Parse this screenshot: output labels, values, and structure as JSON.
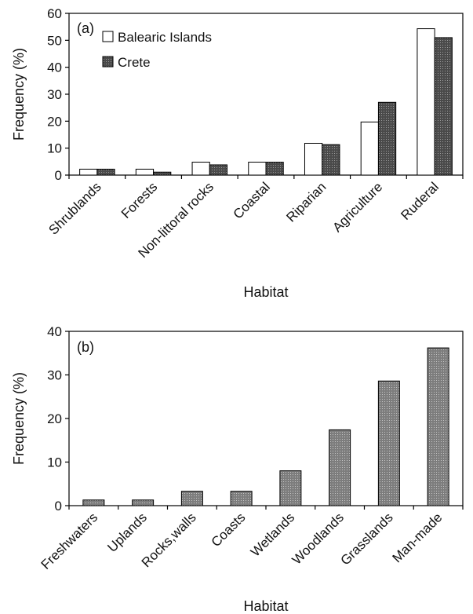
{
  "chart_data": [
    {
      "type": "bar",
      "panel_label": "(a)",
      "categories": [
        "Shrublands",
        "Forests",
        "Non-littoral rocks",
        "Coastal",
        "Riparian",
        "Agriculture",
        "Ruderal"
      ],
      "series": [
        {
          "name": "Balearic Islands",
          "values": [
            2.2,
            2.2,
            4.8,
            4.8,
            11.8,
            19.7,
            54.3
          ],
          "color": "#ffffff"
        },
        {
          "name": "Crete",
          "values": [
            2.2,
            1.1,
            3.8,
            4.8,
            11.3,
            27.0,
            51.0
          ],
          "color": "#555555"
        }
      ],
      "xlabel": "Habitat",
      "ylabel": "Frequency (%)",
      "ylim": [
        0,
        60
      ],
      "yticks": [
        0,
        10,
        20,
        30,
        40,
        50,
        60
      ],
      "legend_position": "top-left",
      "grid": false
    },
    {
      "type": "bar",
      "panel_label": "(b)",
      "categories": [
        "Freshwaters",
        "Uplands",
        "Rocks,walls",
        "Coasts",
        "Wetlands",
        "Woodlands",
        "Grasslands",
        "Man-made"
      ],
      "values": [
        1.3,
        1.3,
        3.3,
        3.3,
        8.0,
        17.4,
        28.6,
        36.2
      ],
      "color": "#8a8a8a",
      "xlabel": "Habitat",
      "ylabel": "Frequency (%)",
      "ylim": [
        0,
        40
      ],
      "yticks": [
        0,
        10,
        20,
        30,
        40
      ],
      "grid": false
    }
  ]
}
